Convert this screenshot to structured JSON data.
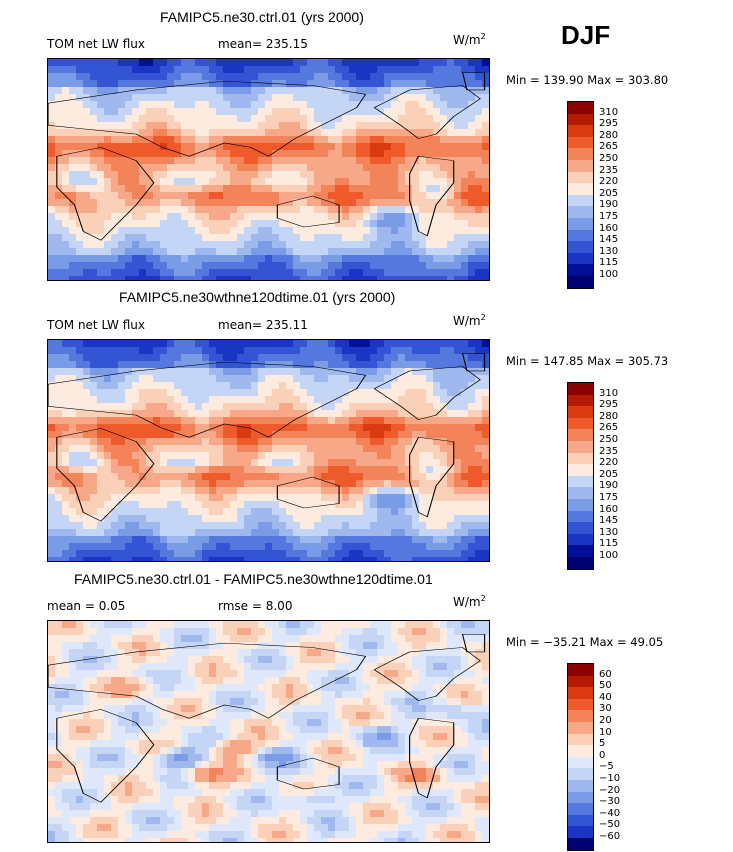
{
  "season": "DJF",
  "units_base": "W/m",
  "units_exp": "2",
  "panels": [
    {
      "title": "FAMIPC5.ne30.ctrl.01 (yrs 2000)",
      "left_label": "TOM net LW flux",
      "stat_label": "mean= 235.15",
      "minmax": "Min = 139.90 Max = 303.80",
      "kind": "abs"
    },
    {
      "title": "FAMIPC5.ne30wthne120dtime.01 (yrs 2000)",
      "left_label": "TOM net LW flux",
      "stat_label": "mean= 235.11",
      "minmax": "Min = 147.85 Max = 305.73",
      "kind": "abs2"
    },
    {
      "title": "FAMIPC5.ne30.ctrl.01 - FAMIPC5.ne30wthne120dtime.01",
      "left_label": "mean =   0.05",
      "stat_label": "rmse =   8.00",
      "minmax": "Min = −35.21 Max =  49.05",
      "kind": "diff"
    }
  ],
  "colorbars": {
    "abs": {
      "levels": [
        "310",
        "295",
        "280",
        "265",
        "250",
        "235",
        "220",
        "205",
        "190",
        "175",
        "160",
        "145",
        "130",
        "115",
        "100"
      ],
      "colors": [
        "#8b0000",
        "#b31a00",
        "#d93a10",
        "#ef5a2a",
        "#f3845a",
        "#f6a888",
        "#fbd0b8",
        "#fdebe0",
        "#c5d5f5",
        "#9fb9ef",
        "#7a9be6",
        "#5578df",
        "#3355d4",
        "#1a35c3",
        "#000f95",
        "#00006e"
      ]
    },
    "diff": {
      "levels": [
        "60",
        "50",
        "40",
        "30",
        "20",
        "10",
        "5",
        "0",
        "−5",
        "−10",
        "−20",
        "−30",
        "−40",
        "−50",
        "−60"
      ],
      "colors": [
        "#8b0000",
        "#b31a00",
        "#d93a10",
        "#ef5a2a",
        "#f3845a",
        "#f6a888",
        "#fbd0b8",
        "#fdebe0",
        "#dfe8fb",
        "#c5d5f5",
        "#9fb9ef",
        "#7a9be6",
        "#5578df",
        "#3355d4",
        "#1a35c3",
        "#00006e"
      ]
    }
  },
  "chart_data": {
    "type": "heatmap",
    "title": "TOM net LW flux, DJF",
    "units": "W/m^2",
    "series": [
      {
        "name": "FAMIPC5.ne30.ctrl.01 (yrs 2000)",
        "mean": 235.15,
        "min": 139.9,
        "max": 303.8
      },
      {
        "name": "FAMIPC5.ne30wthne120dtime.01 (yrs 2000)",
        "mean": 235.11,
        "min": 147.85,
        "max": 305.73
      },
      {
        "name": "FAMIPC5.ne30.ctrl.01 - FAMIPC5.ne30wthne120dtime.01",
        "mean": 0.05,
        "rmse": 8.0,
        "min": -35.21,
        "max": 49.05
      }
    ]
  }
}
